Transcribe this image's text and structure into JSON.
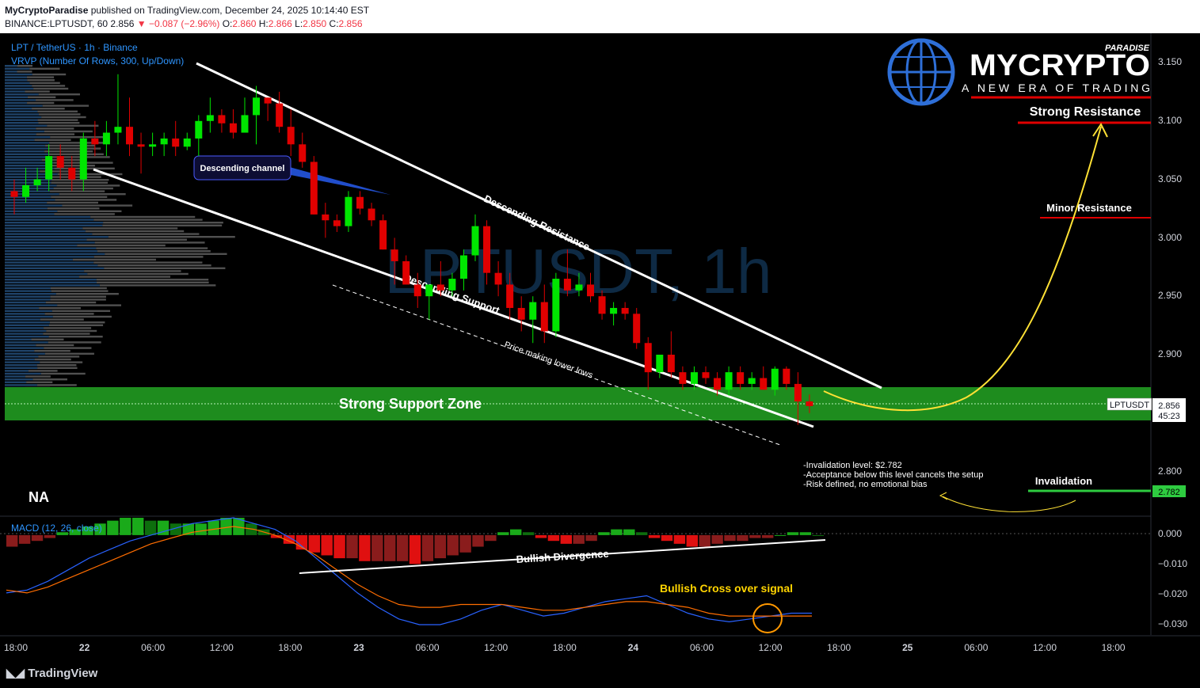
{
  "header": {
    "publisher": "MyCryptoParadise",
    "published_text": "published on TradingView.com, December 24, 2025 10:14:40 EST",
    "symbol": "BINANCE:LPTUSDT, 60",
    "price": "2.856",
    "change": "▼ −0.087 (−2.96%)",
    "o_label": "O:",
    "o": "2.860",
    "h_label": "H:",
    "h": "2.866",
    "l_label": "L:",
    "l": "2.850",
    "c_label": "C:",
    "c": "2.856"
  },
  "legend": {
    "symbol_line": "LPT / TetherUS · 1h · Binance",
    "vrvp_line": "VRVP (Number Of Rows, 300, Up/Down)",
    "macd_line": "MACD (12, 26, close)",
    "na_label": "NA"
  },
  "watermark": "LPTUSDT, 1h",
  "logo": {
    "brand": "MYCRYPTO",
    "sub": "PARADISE",
    "tagline": "A NEW ERA OF TRADING"
  },
  "annotations": {
    "descending_channel": "Descending channel",
    "descending_resistance": "Descending Resistance",
    "descending_support": "Descending Support",
    "lower_lows": "Price making lower lows",
    "strong_support_zone": "Strong Support Zone",
    "strong_resistance": "Strong Resistance",
    "minor_resistance": "Minor Resistance",
    "invalidation": "Invalidation",
    "invalidation_note_1": "-Invalidation level: $2.782",
    "invalidation_note_2": "-Acceptance below this level cancels the setup",
    "invalidation_note_3": "-Risk defined, no emotional bias",
    "bullish_divergence": "Bullish Divergence",
    "bullish_cross": "Bullish Cross over signal"
  },
  "price_axis": {
    "ticks": [
      "3.150",
      "3.100",
      "3.050",
      "3.000",
      "2.950",
      "2.900",
      "2.800"
    ],
    "current_symbol": "LPTUSDT",
    "current_price": "2.856",
    "countdown": "45:23",
    "invalidation_price": "2.782"
  },
  "macd_axis": {
    "ticks": [
      "0.000",
      "−0.010",
      "−0.020",
      "−0.030"
    ]
  },
  "time_axis": {
    "ticks": [
      "18:00",
      "22",
      "06:00",
      "12:00",
      "18:00",
      "23",
      "06:00",
      "12:00",
      "18:00",
      "24",
      "06:00",
      "12:00",
      "18:00",
      "25",
      "06:00",
      "12:00",
      "18:00"
    ]
  },
  "footer": {
    "brand": "TradingView"
  },
  "colors": {
    "up": "#00e600",
    "down": "#e00000",
    "support_zone": "#1e8c1e",
    "resistance": "#e00000",
    "macd_line": "#2962ff",
    "signal_line": "#ff6d00",
    "projection": "#ffe135"
  },
  "chart_data": {
    "type": "candlestick",
    "symbol": "LPTUSDT",
    "timeframe": "1h",
    "price_range": [
      2.76,
      3.17
    ],
    "levels": {
      "strong_resistance": 3.1,
      "minor_resistance": 3.017,
      "support_zone": [
        2.847,
        2.873
      ],
      "invalidation": 2.782,
      "last": 2.856
    },
    "candles": [
      {
        "o": 3.04,
        "h": 3.05,
        "l": 3.02,
        "c": 3.035
      },
      {
        "o": 3.035,
        "h": 3.06,
        "l": 3.03,
        "c": 3.045
      },
      {
        "o": 3.045,
        "h": 3.06,
        "l": 3.04,
        "c": 3.05
      },
      {
        "o": 3.05,
        "h": 3.08,
        "l": 3.04,
        "c": 3.07
      },
      {
        "o": 3.07,
        "h": 3.08,
        "l": 3.05,
        "c": 3.06
      },
      {
        "o": 3.06,
        "h": 3.07,
        "l": 3.04,
        "c": 3.05
      },
      {
        "o": 3.05,
        "h": 3.09,
        "l": 3.04,
        "c": 3.085
      },
      {
        "o": 3.085,
        "h": 3.1,
        "l": 3.07,
        "c": 3.08
      },
      {
        "o": 3.08,
        "h": 3.1,
        "l": 3.07,
        "c": 3.09
      },
      {
        "o": 3.09,
        "h": 3.14,
        "l": 3.08,
        "c": 3.095
      },
      {
        "o": 3.095,
        "h": 3.12,
        "l": 3.07,
        "c": 3.08
      },
      {
        "o": 3.08,
        "h": 3.09,
        "l": 3.055,
        "c": 3.078
      },
      {
        "o": 3.078,
        "h": 3.09,
        "l": 3.07,
        "c": 3.08
      },
      {
        "o": 3.08,
        "h": 3.09,
        "l": 3.07,
        "c": 3.085
      },
      {
        "o": 3.085,
        "h": 3.1,
        "l": 3.07,
        "c": 3.078
      },
      {
        "o": 3.078,
        "h": 3.09,
        "l": 3.075,
        "c": 3.085
      },
      {
        "o": 3.085,
        "h": 3.105,
        "l": 3.07,
        "c": 3.1
      },
      {
        "o": 3.1,
        "h": 3.12,
        "l": 3.09,
        "c": 3.105
      },
      {
        "o": 3.105,
        "h": 3.11,
        "l": 3.09,
        "c": 3.098
      },
      {
        "o": 3.098,
        "h": 3.11,
        "l": 3.085,
        "c": 3.09
      },
      {
        "o": 3.09,
        "h": 3.12,
        "l": 3.09,
        "c": 3.105
      },
      {
        "o": 3.105,
        "h": 3.13,
        "l": 3.08,
        "c": 3.12
      },
      {
        "o": 3.12,
        "h": 3.12,
        "l": 3.1,
        "c": 3.115
      },
      {
        "o": 3.115,
        "h": 3.125,
        "l": 3.09,
        "c": 3.095
      },
      {
        "o": 3.095,
        "h": 3.11,
        "l": 3.07,
        "c": 3.08
      },
      {
        "o": 3.08,
        "h": 3.09,
        "l": 3.06,
        "c": 3.065
      },
      {
        "o": 3.065,
        "h": 3.07,
        "l": 3.02,
        "c": 3.02
      },
      {
        "o": 3.02,
        "h": 3.03,
        "l": 3.0,
        "c": 3.015
      },
      {
        "o": 3.015,
        "h": 3.02,
        "l": 3.005,
        "c": 3.01
      },
      {
        "o": 3.01,
        "h": 3.04,
        "l": 3.005,
        "c": 3.035
      },
      {
        "o": 3.035,
        "h": 3.04,
        "l": 3.02,
        "c": 3.025
      },
      {
        "o": 3.025,
        "h": 3.03,
        "l": 3.01,
        "c": 3.015
      },
      {
        "o": 3.015,
        "h": 3.02,
        "l": 2.99,
        "c": 2.99
      },
      {
        "o": 2.99,
        "h": 3.0,
        "l": 2.96,
        "c": 2.98
      },
      {
        "o": 2.98,
        "h": 2.985,
        "l": 2.96,
        "c": 2.96
      },
      {
        "o": 2.96,
        "h": 2.97,
        "l": 2.94,
        "c": 2.95
      },
      {
        "o": 2.95,
        "h": 2.96,
        "l": 2.93,
        "c": 2.96
      },
      {
        "o": 2.96,
        "h": 2.98,
        "l": 2.95,
        "c": 2.955
      },
      {
        "o": 2.955,
        "h": 2.97,
        "l": 2.95,
        "c": 2.965
      },
      {
        "o": 2.965,
        "h": 2.99,
        "l": 2.955,
        "c": 2.985
      },
      {
        "o": 2.985,
        "h": 3.02,
        "l": 2.98,
        "c": 3.01
      },
      {
        "o": 3.01,
        "h": 3.015,
        "l": 2.96,
        "c": 2.97
      },
      {
        "o": 2.97,
        "h": 2.98,
        "l": 2.95,
        "c": 2.96
      },
      {
        "o": 2.96,
        "h": 2.97,
        "l": 2.93,
        "c": 2.94
      },
      {
        "o": 2.94,
        "h": 2.95,
        "l": 2.92,
        "c": 2.93
      },
      {
        "o": 2.93,
        "h": 2.95,
        "l": 2.91,
        "c": 2.945
      },
      {
        "o": 2.945,
        "h": 2.96,
        "l": 2.91,
        "c": 2.92
      },
      {
        "o": 2.92,
        "h": 2.97,
        "l": 2.915,
        "c": 2.965
      },
      {
        "o": 2.965,
        "h": 2.99,
        "l": 2.95,
        "c": 2.955
      },
      {
        "o": 2.955,
        "h": 2.97,
        "l": 2.95,
        "c": 2.96
      },
      {
        "o": 2.96,
        "h": 2.97,
        "l": 2.945,
        "c": 2.95
      },
      {
        "o": 2.95,
        "h": 2.955,
        "l": 2.93,
        "c": 2.935
      },
      {
        "o": 2.935,
        "h": 2.945,
        "l": 2.925,
        "c": 2.94
      },
      {
        "o": 2.94,
        "h": 2.945,
        "l": 2.93,
        "c": 2.935
      },
      {
        "o": 2.935,
        "h": 2.94,
        "l": 2.905,
        "c": 2.91
      },
      {
        "o": 2.91,
        "h": 2.915,
        "l": 2.87,
        "c": 2.885
      },
      {
        "o": 2.885,
        "h": 2.9,
        "l": 2.88,
        "c": 2.9
      },
      {
        "o": 2.9,
        "h": 2.92,
        "l": 2.88,
        "c": 2.885
      },
      {
        "o": 2.885,
        "h": 2.89,
        "l": 2.87,
        "c": 2.875
      },
      {
        "o": 2.875,
        "h": 2.89,
        "l": 2.87,
        "c": 2.885
      },
      {
        "o": 2.885,
        "h": 2.89,
        "l": 2.875,
        "c": 2.88
      },
      {
        "o": 2.88,
        "h": 2.885,
        "l": 2.865,
        "c": 2.87
      },
      {
        "o": 2.87,
        "h": 2.89,
        "l": 2.865,
        "c": 2.885
      },
      {
        "o": 2.885,
        "h": 2.89,
        "l": 2.87,
        "c": 2.875
      },
      {
        "o": 2.875,
        "h": 2.885,
        "l": 2.87,
        "c": 2.88
      },
      {
        "o": 2.88,
        "h": 2.89,
        "l": 2.87,
        "c": 2.87
      },
      {
        "o": 2.87,
        "h": 2.89,
        "l": 2.865,
        "c": 2.888
      },
      {
        "o": 2.888,
        "h": 2.89,
        "l": 2.87,
        "c": 2.875
      },
      {
        "o": 2.875,
        "h": 2.885,
        "l": 2.84,
        "c": 2.86
      },
      {
        "o": 2.86,
        "h": 2.866,
        "l": 2.85,
        "c": 2.856
      }
    ],
    "macd_hist": [
      -0.004,
      -0.003,
      -0.002,
      -0.001,
      0.001,
      0.002,
      0.003,
      0.004,
      0.005,
      0.006,
      0.006,
      0.005,
      0.005,
      0.004,
      0.004,
      0.004,
      0.005,
      0.006,
      0.006,
      0.004,
      0.002,
      -0.001,
      -0.003,
      -0.005,
      -0.006,
      -0.007,
      -0.008,
      -0.008,
      -0.009,
      -0.009,
      -0.009,
      -0.009,
      -0.01,
      -0.009,
      -0.008,
      -0.007,
      -0.006,
      -0.004,
      -0.002,
      0.001,
      0.002,
      0.001,
      -0.001,
      -0.002,
      -0.003,
      -0.003,
      -0.002,
      0.001,
      0.002,
      0.002,
      0.001,
      -0.001,
      -0.002,
      -0.003,
      -0.004,
      -0.004,
      -0.003,
      -0.002,
      -0.002,
      -0.001,
      -0.001,
      0.0,
      0.001,
      0.001,
      0.0
    ],
    "macd_line": [
      -0.02,
      -0.019,
      -0.016,
      -0.012,
      -0.008,
      -0.005,
      -0.002,
      0.0,
      0.002,
      0.004,
      0.005,
      0.006,
      0.004,
      0.002,
      -0.002,
      -0.008,
      -0.014,
      -0.02,
      -0.025,
      -0.029,
      -0.031,
      -0.031,
      -0.029,
      -0.026,
      -0.024,
      -0.026,
      -0.028,
      -0.027,
      -0.025,
      -0.023,
      -0.022,
      -0.021,
      -0.024,
      -0.027,
      -0.029,
      -0.03,
      -0.029,
      -0.028,
      -0.027,
      -0.027
    ],
    "signal_line": [
      -0.019,
      -0.02,
      -0.018,
      -0.015,
      -0.012,
      -0.009,
      -0.006,
      -0.003,
      -0.001,
      0.001,
      0.002,
      0.003,
      0.002,
      0.0,
      -0.003,
      -0.007,
      -0.012,
      -0.017,
      -0.021,
      -0.024,
      -0.025,
      -0.025,
      -0.024,
      -0.024,
      -0.024,
      -0.025,
      -0.026,
      -0.026,
      -0.025,
      -0.024,
      -0.023,
      -0.023,
      -0.024,
      -0.025,
      -0.027,
      -0.028,
      -0.028,
      -0.028,
      -0.028,
      -0.028
    ],
    "macd_range": [
      -0.034,
      0.006
    ]
  }
}
